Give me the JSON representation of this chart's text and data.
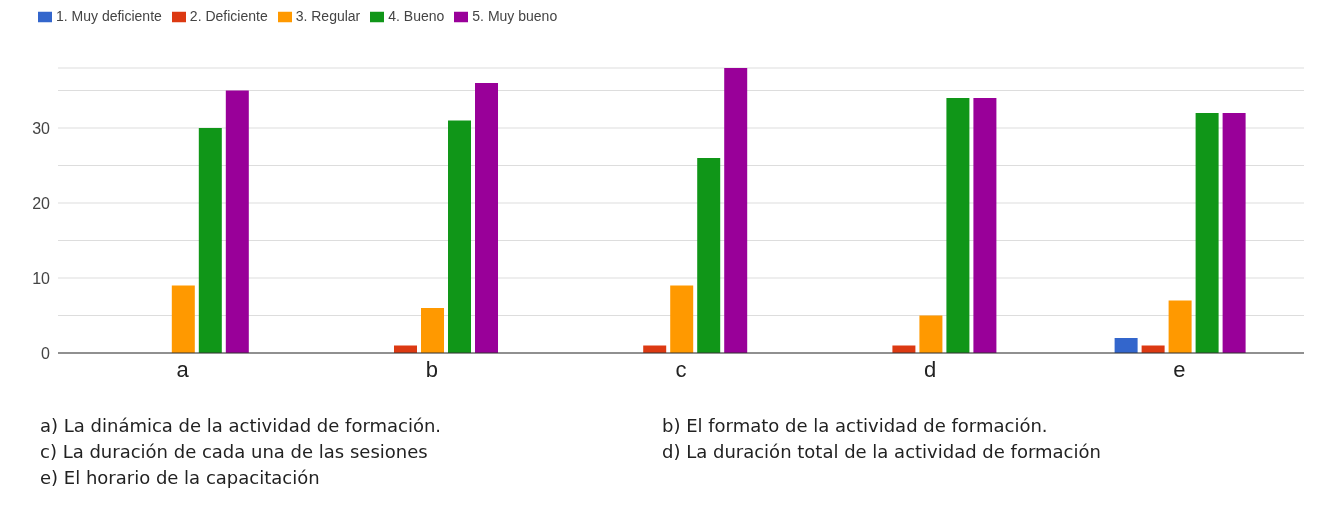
{
  "chart_data": {
    "type": "bar",
    "categories": [
      "a",
      "b",
      "c",
      "d",
      "e"
    ],
    "series": [
      {
        "name": "1. Muy deficiente",
        "color": "#3366cc",
        "values": [
          0,
          0,
          0,
          0,
          2
        ]
      },
      {
        "name": "2. Deficiente",
        "color": "#dc3912",
        "values": [
          0,
          1,
          1,
          1,
          1
        ]
      },
      {
        "name": "3. Regular",
        "color": "#ff9900",
        "values": [
          9,
          6,
          9,
          5,
          7
        ]
      },
      {
        "name": "4. Bueno",
        "color": "#109618",
        "values": [
          30,
          31,
          26,
          34,
          32
        ]
      },
      {
        "name": "5. Muy bueno",
        "color": "#990099",
        "values": [
          35,
          36,
          38,
          34,
          32
        ]
      }
    ],
    "ylim": [
      0,
      38
    ],
    "yticks": [
      0,
      {
        "value": 5,
        "label": null
      },
      10,
      {
        "value": 15,
        "label": null
      },
      20,
      {
        "value": 25,
        "label": null
      },
      30,
      {
        "value": 35,
        "label": null
      }
    ],
    "grid": "y",
    "legend": "top left",
    "annotations": [
      "a) La dinámica de la actividad de formación.",
      "b) El formato de la actividad de formación.",
      "c) La duración de cada una de las sesiones",
      "d) La duración total de la actividad de formación",
      "e) El horario de la capacitación"
    ]
  }
}
